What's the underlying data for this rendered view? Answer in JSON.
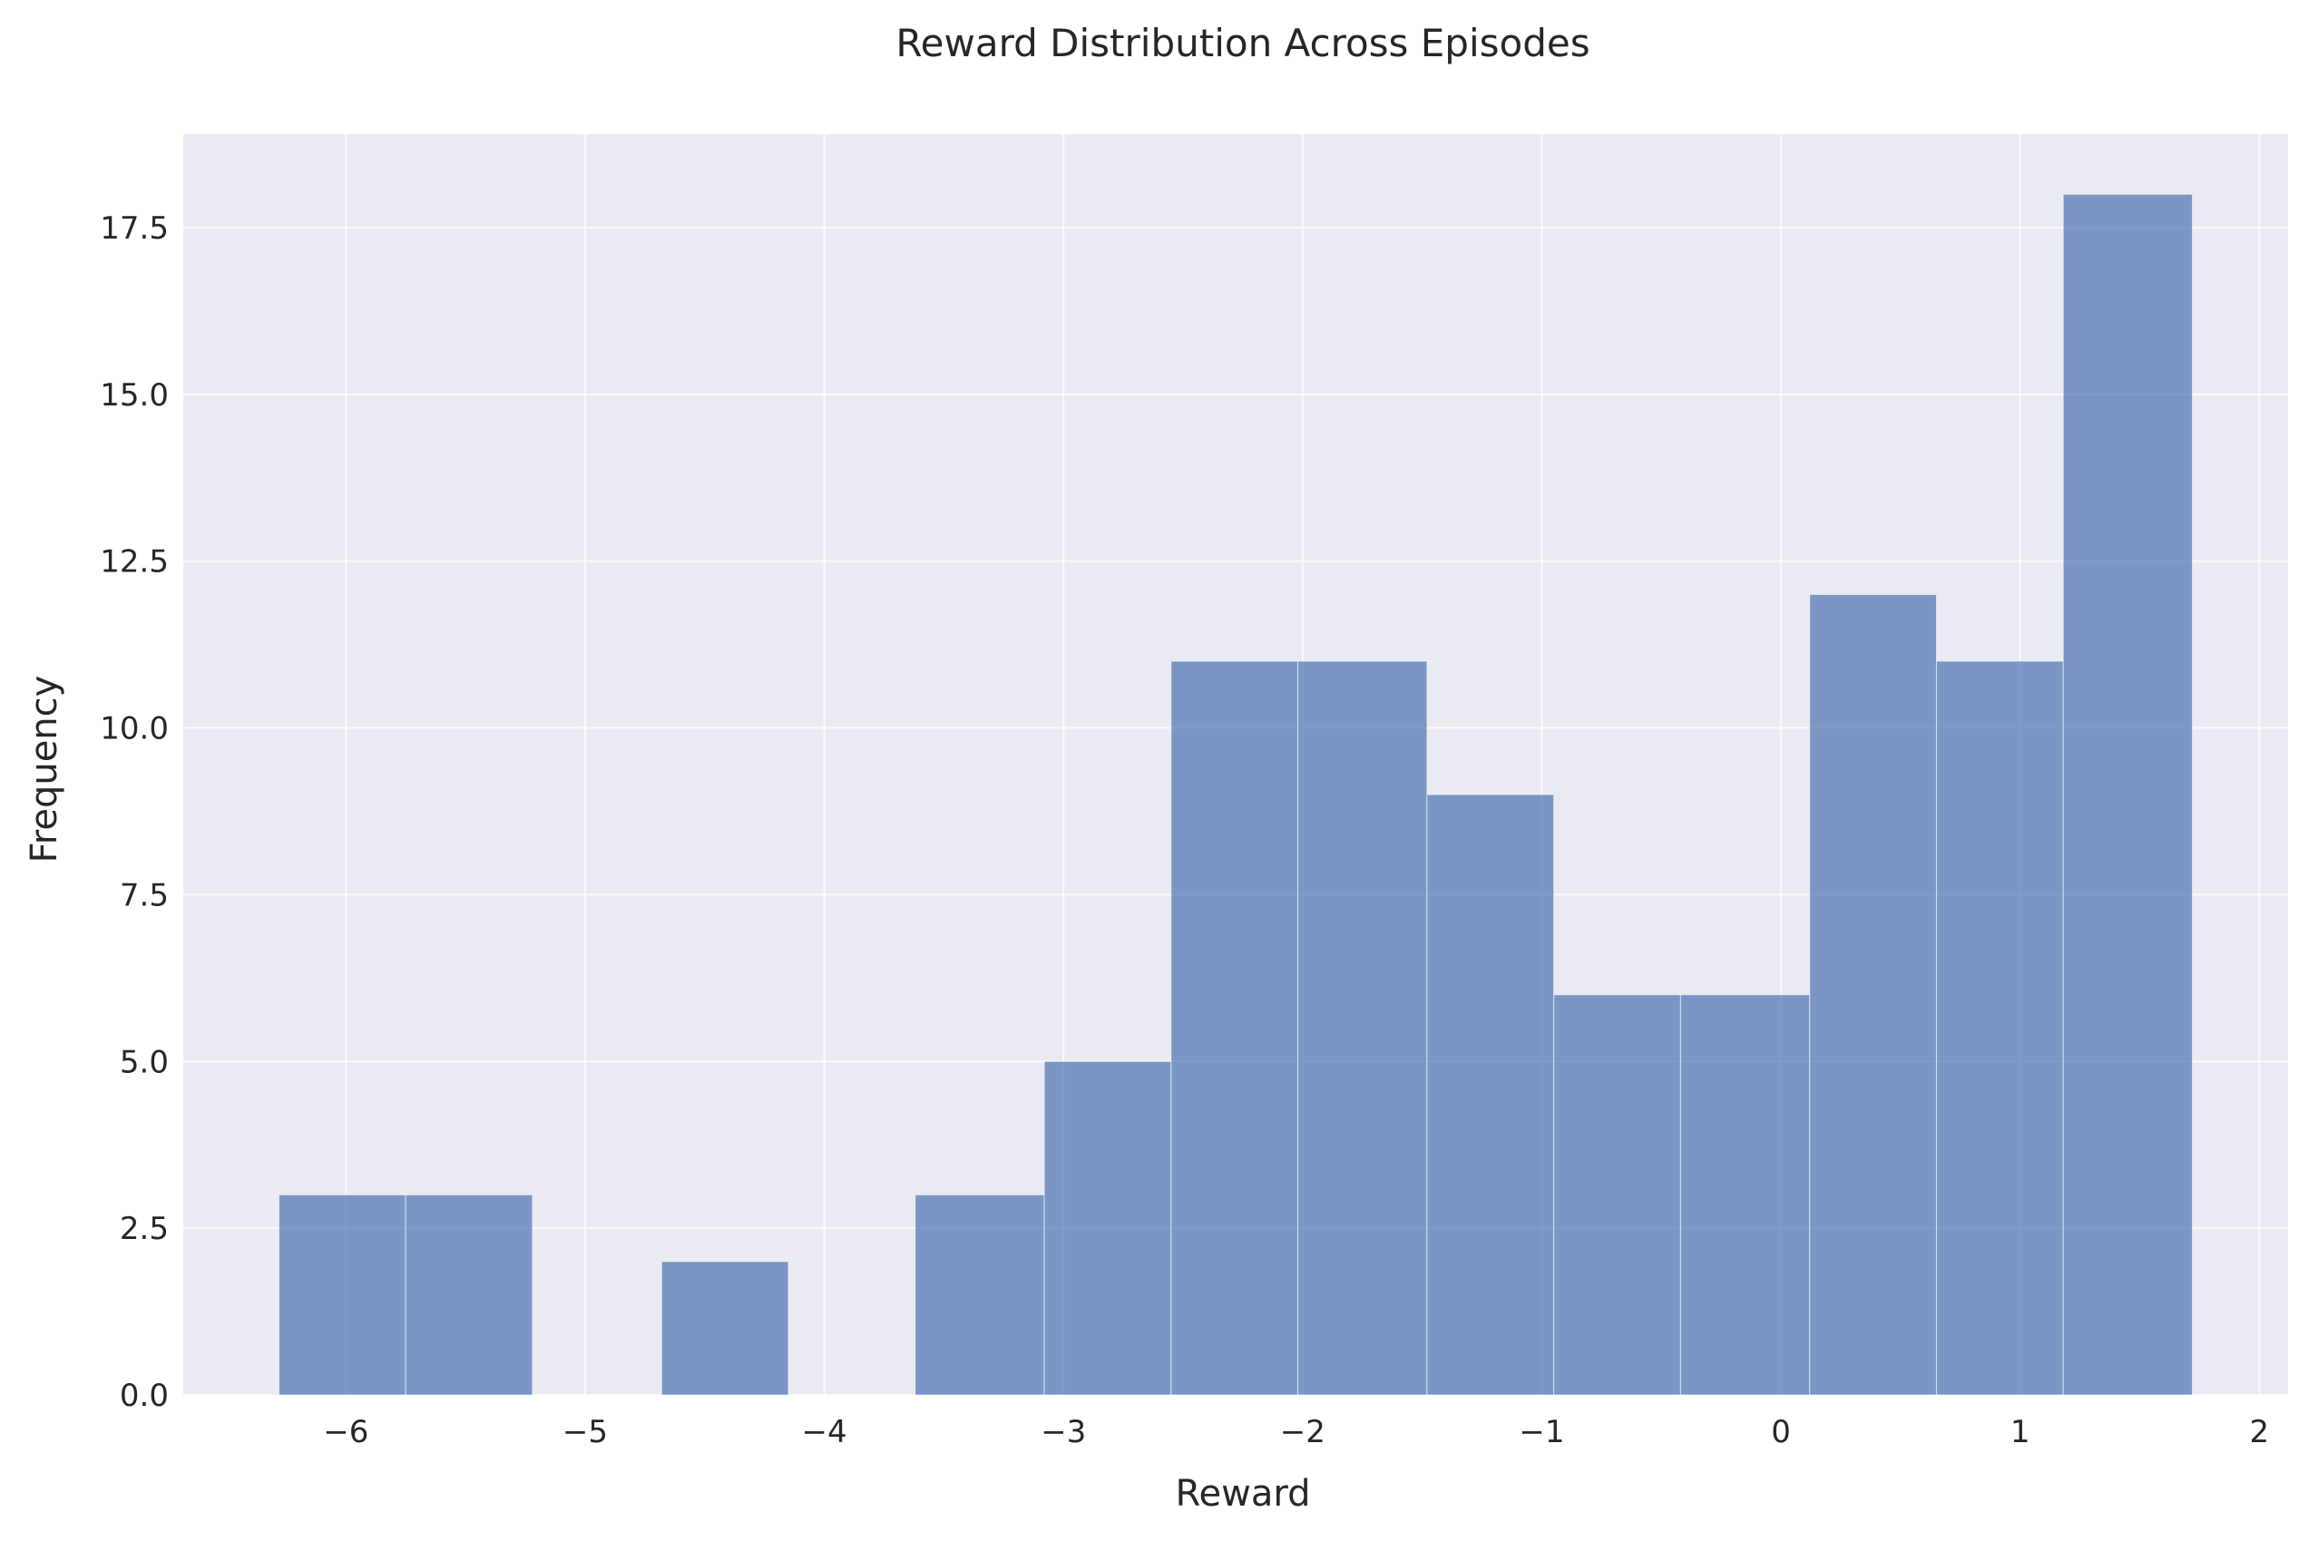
{
  "chart_data": {
    "type": "bar",
    "title": "Reward Distribution Across Episodes",
    "xlabel": "Reward",
    "ylabel": "Frequency",
    "bin_edges": [
      -6.28,
      -5.75,
      -5.22,
      -4.68,
      -4.15,
      -3.62,
      -3.08,
      -2.55,
      -2.02,
      -1.48,
      -0.95,
      -0.42,
      0.12,
      0.65,
      1.18,
      1.72
    ],
    "values": [
      3,
      3,
      0,
      2,
      0,
      3,
      5,
      11,
      11,
      9,
      6,
      6,
      12,
      11,
      18
    ],
    "xlim": [
      -6.68,
      2.12
    ],
    "ylim": [
      0,
      18.9
    ],
    "xticks": [
      -6,
      -5,
      -4,
      -3,
      -2,
      -1,
      0,
      1,
      2
    ],
    "xtick_labels": [
      "−6",
      "−5",
      "−4",
      "−3",
      "−2",
      "−1",
      "0",
      "1",
      "2"
    ],
    "yticks": [
      0,
      2.5,
      5,
      7.5,
      10,
      12.5,
      15,
      17.5
    ],
    "ytick_labels": [
      "0.0",
      "2.5",
      "5.0",
      "7.5",
      "10.0",
      "12.5",
      "15.0",
      "17.5"
    ],
    "grid": true,
    "colors": {
      "bar": "#4c72b0",
      "bar_opacity": 0.7,
      "plot_background": "#eaeaf2",
      "grid": "#ffffff"
    }
  }
}
